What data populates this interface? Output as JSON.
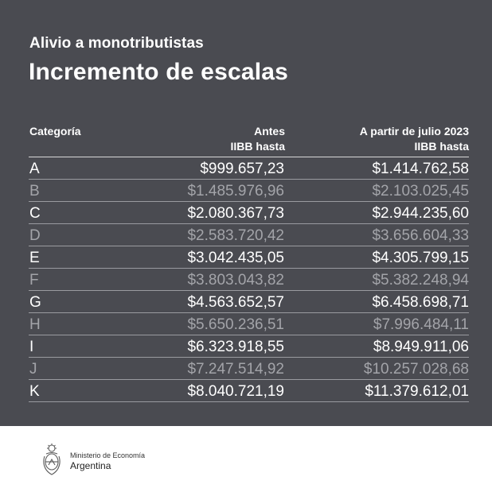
{
  "header": {
    "subtitle": "Alivio a monotributistas",
    "title": "Incremento de escalas"
  },
  "table": {
    "columns": [
      {
        "line1": "Categoría",
        "line2": ""
      },
      {
        "line1": "Antes",
        "line2": "IIBB hasta"
      },
      {
        "line1": "A partir de julio 2023",
        "line2": "IIBB hasta"
      }
    ],
    "rows": [
      {
        "category": "A",
        "before": "$999.657,23",
        "from_july_2023": "$1.414.762,58"
      },
      {
        "category": "B",
        "before": "$1.485.976,96",
        "from_july_2023": "$2.103.025,45"
      },
      {
        "category": "C",
        "before": "$2.080.367,73",
        "from_july_2023": "$2.944.235,60"
      },
      {
        "category": "D",
        "before": "$2.583.720,42",
        "from_july_2023": "$3.656.604,33"
      },
      {
        "category": "E",
        "before": "$3.042.435,05",
        "from_july_2023": "$4.305.799,15"
      },
      {
        "category": "F",
        "before": "$3.803.043,82",
        "from_july_2023": "$5.382.248,94"
      },
      {
        "category": "G",
        "before": "$4.563.652,57",
        "from_july_2023": "$6.458.698,71"
      },
      {
        "category": "H",
        "before": "$5.650.236,51",
        "from_july_2023": "$7.996.484,11"
      },
      {
        "category": "I",
        "before": "$6.323.918,55",
        "from_july_2023": "$8.949.911,06"
      },
      {
        "category": "J",
        "before": "$7.247.514,92",
        "from_july_2023": "$10.257.028,68"
      },
      {
        "category": "K",
        "before": "$8.040.721,19",
        "from_july_2023": "$11.379.612,01"
      }
    ]
  },
  "footer": {
    "ministry": "Ministerio de Economía",
    "country": "Argentina",
    "logo_icon": "argentina-coat-of-arms-icon"
  },
  "colors": {
    "background": "#4a4b51",
    "text_primary": "#ffffff",
    "text_dimmed": "#a3a4a9"
  }
}
